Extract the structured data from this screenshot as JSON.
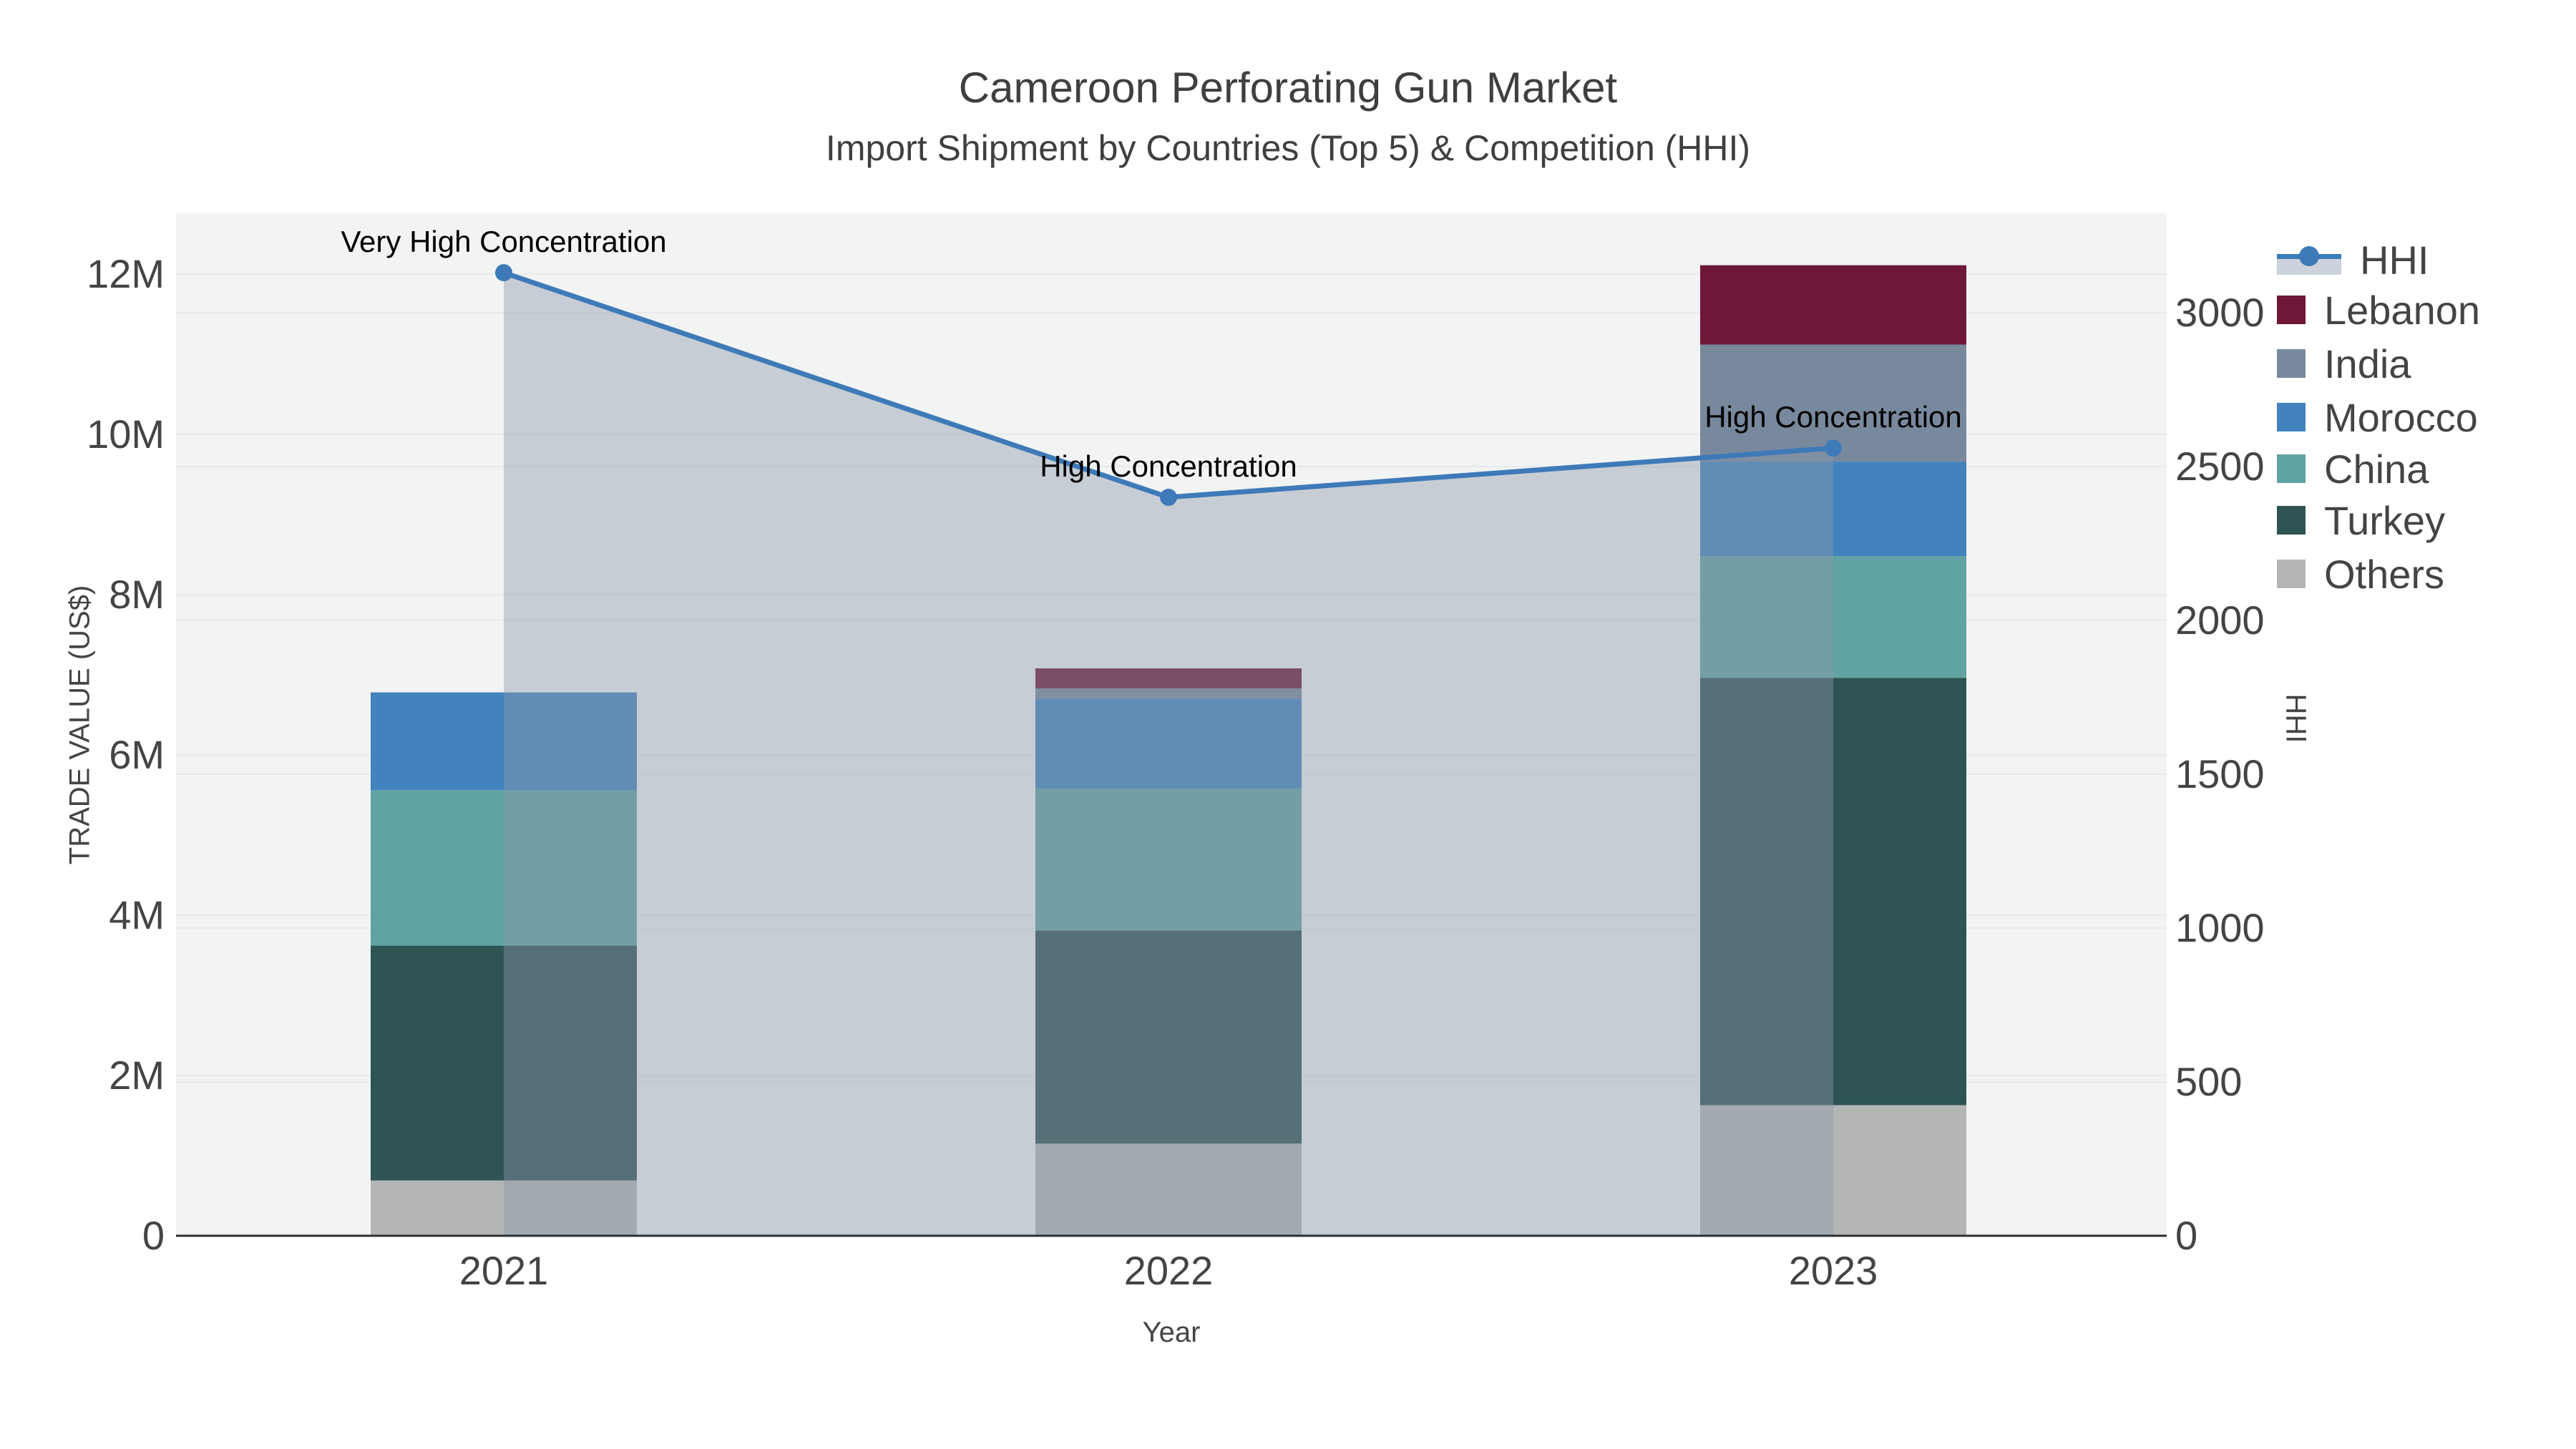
{
  "title": "Cameroon Perforating Gun Market",
  "subtitle": "Import Shipment by Countries (Top 5) & Competition (HHI)",
  "chart_data": {
    "type": "bar",
    "subtype": "stacked bars with secondary-axis line (area fill)",
    "categories": [
      "2021",
      "2022",
      "2023"
    ],
    "xlabel": "Year",
    "ylabel_left": "TRADE VALUE (US$)",
    "ylabel_right": "HHI",
    "yaxis_left": {
      "ticks": [
        "0",
        "2M",
        "4M",
        "6M",
        "8M",
        "10M",
        "12M"
      ],
      "values_millions": [
        0,
        2,
        4,
        6,
        8,
        10,
        12
      ],
      "range_millions": [
        0,
        12.9
      ],
      "grid": true
    },
    "yaxis_right": {
      "ticks": [
        "0",
        "500",
        "1000",
        "1500",
        "2000",
        "2500",
        "3000"
      ],
      "values": [
        0,
        500,
        1000,
        1500,
        2000,
        2500,
        3000
      ],
      "range": [
        0,
        3325
      ],
      "grid": true
    },
    "series": [
      {
        "name": "Others",
        "color": "#b4b6b6",
        "values_millions": [
          0.69,
          1.15,
          1.63
        ]
      },
      {
        "name": "Turkey",
        "color": "#2e5454",
        "values_millions": [
          2.93,
          2.66,
          5.33
        ]
      },
      {
        "name": "China",
        "color": "#61a3a2",
        "values_millions": [
          1.94,
          1.77,
          1.52
        ]
      },
      {
        "name": "Morocco",
        "color": "#4283be",
        "values_millions": [
          1.22,
          1.12,
          1.18
        ]
      },
      {
        "name": "India",
        "color": "#78899e",
        "values_millions": [
          0,
          0.13,
          1.46
        ]
      },
      {
        "name": "Lebanon",
        "color": "#6e1738",
        "values_millions": [
          0,
          0.25,
          0.99
        ]
      }
    ],
    "totals_millions": [
      6.78,
      7.08,
      12.11
    ],
    "hhi": {
      "name": "HHI",
      "values": [
        3130,
        2400,
        2560
      ],
      "line_color": "#3e7ab8",
      "fill_color": "rgba(141,152,170,0.42)",
      "marker": "circle"
    },
    "annotations": [
      {
        "text": "Very High Concentration",
        "year": "2021"
      },
      {
        "text": "High Concentration",
        "year": "2022"
      },
      {
        "text": "High Concentration",
        "year": "2023"
      }
    ],
    "legend": [
      "HHI",
      "Lebanon",
      "India",
      "Morocco",
      "China",
      "Turkey",
      "Others"
    ],
    "legend_position": "top-right",
    "plot_bg": "#f2f3f3",
    "grid_color": "#e7e9eb",
    "axis_line_color": "#2f2f2f",
    "text_color": "#444444",
    "annotation_color": "#000000"
  }
}
